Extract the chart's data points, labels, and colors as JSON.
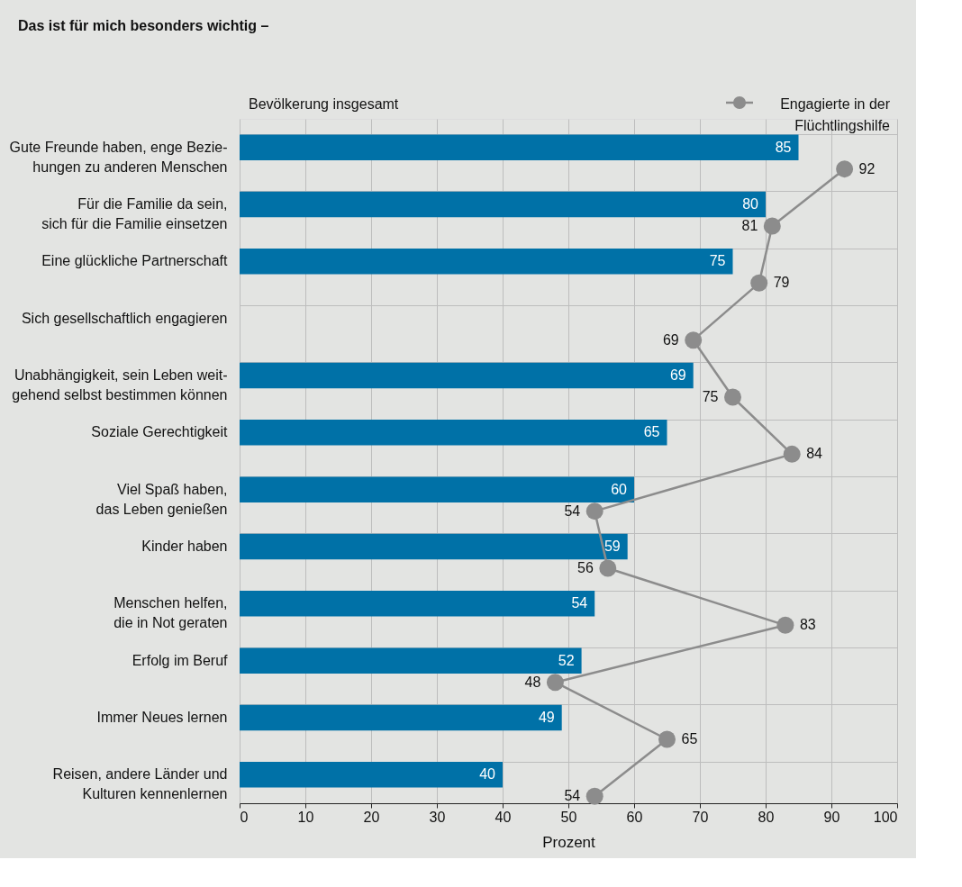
{
  "chart_data": {
    "type": "bar",
    "orientation": "horizontal",
    "title": "Das ist für mich besonders wichtig –",
    "xlabel": "Prozent",
    "categories": [
      "Gute Freunde haben, enge Bezie-\nhungen zu anderen Menschen",
      "Für die Familie da sein,\nsich für die Familie einsetzen",
      "Eine glückliche Partnerschaft",
      "Sich gesellschaftlich engagieren",
      "Unabhängigkeit, sein Leben weit-\ngehend selbst bestimmen können",
      "Soziale Gerechtigkeit",
      "Viel Spaß haben,\ndas Leben genießen",
      "Kinder haben",
      "Menschen helfen,\ndie in Not geraten",
      "Erfolg im Beruf",
      "Immer Neues lernen",
      "Reisen, andere Länder und\nKulturen kennenlernen"
    ],
    "series": [
      {
        "name": "Bevölkerung insgesamt",
        "color": "#0071a7",
        "values": [
          85,
          80,
          75,
          null,
          69,
          65,
          60,
          59,
          54,
          52,
          49,
          40
        ],
        "value_labels": [
          "85",
          "80",
          "75",
          null,
          "69",
          "65",
          "60",
          "59",
          "54",
          "52",
          "49",
          "40"
        ]
      },
      {
        "name": "Engagierte in der\nFlüchtlingshilfe",
        "type": "line",
        "color": "#8c8c8c",
        "marker": "circle",
        "values": [
          92,
          81,
          79,
          69,
          75,
          84,
          54,
          56,
          83,
          48,
          65,
          54
        ],
        "value_labels": [
          "92",
          "81",
          "79",
          "69",
          "75",
          "84",
          "54",
          "56",
          "83",
          "48",
          "65",
          "54"
        ]
      }
    ],
    "xlim": [
      0,
      100
    ],
    "xticks": [
      0,
      10,
      20,
      30,
      40,
      50,
      60,
      70,
      80,
      90,
      100
    ],
    "grid": true,
    "legend": "top"
  }
}
